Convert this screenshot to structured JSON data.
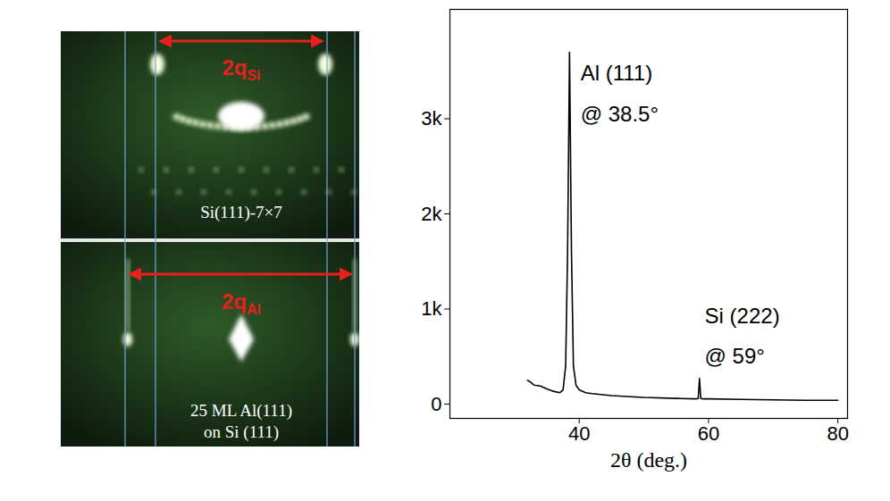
{
  "images": [
    {
      "annotation": {
        "text": "2q",
        "subscript": "Si"
      },
      "caption": [
        "Si(111)-7×7"
      ]
    },
    {
      "annotation": {
        "text": "2q",
        "subscript": "Al"
      },
      "caption": [
        "25 ML Al(111)",
        "on Si (111)"
      ]
    }
  ],
  "chart_data": {
    "type": "line",
    "xlabel": "2θ (deg.)",
    "xlim": [
      20,
      81.5
    ],
    "xticks": [
      40,
      60,
      80
    ],
    "ylim": [
      -150,
      4150
    ],
    "yticks": [
      0,
      {
        "value": 1000,
        "label": "1k"
      },
      {
        "value": 2000,
        "label": "2k"
      },
      {
        "value": 3000,
        "label": "3k"
      }
    ],
    "x": [
      32,
      32.5,
      33,
      34,
      35,
      36,
      37,
      37.5,
      37.9,
      38.2,
      38.5,
      38.8,
      39.1,
      39.5,
      40,
      41,
      42,
      45,
      50,
      55,
      58,
      58.4,
      58.6,
      58.8,
      59.2,
      60,
      65,
      70,
      75,
      80
    ],
    "series": [
      {
        "color": "#000000",
        "values": [
          250,
          230,
          200,
          190,
          160,
          135,
          120,
          150,
          400,
          1600,
          3700,
          1600,
          400,
          200,
          150,
          120,
          110,
          90,
          70,
          60,
          55,
          60,
          270,
          60,
          55,
          55,
          50,
          45,
          40,
          40
        ]
      }
    ],
    "annotations": [
      {
        "text": "Al (111)",
        "x": 40.2,
        "y": 3480
      },
      {
        "text": "@ 38.5°",
        "x": 40.2,
        "y": 3040
      },
      {
        "text": "Si (222)",
        "x": 59.4,
        "y": 920
      },
      {
        "text": "@ 59°",
        "x": 59.4,
        "y": 500
      }
    ]
  }
}
